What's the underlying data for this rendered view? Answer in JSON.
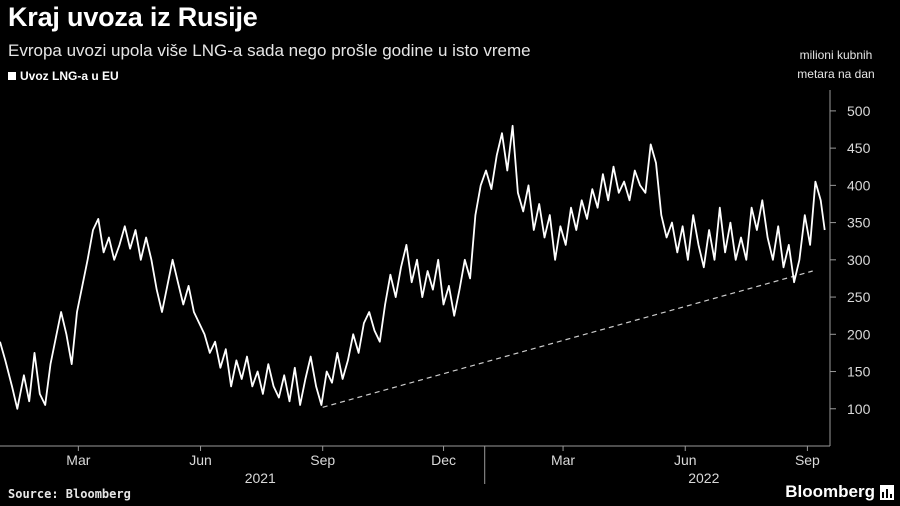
{
  "header": {
    "title": "Kraj uvoza iz Rusije",
    "subtitle": "Evropa uvozi upola više LNG-a sada nego prošle godine u isto vreme",
    "unit_label_1": "milioni kubnih",
    "unit_label_2": "metara na dan"
  },
  "footer": {
    "source": "Source: Bloomberg",
    "brand": "Bloomberg"
  },
  "colors": {
    "background": "#000000",
    "line": "#ffffff",
    "trend": "#cccccc"
  },
  "chart_data": {
    "type": "line",
    "title": "Kraj uvoza iz Rusije",
    "subtitle": "Evropa uvozi upola više LNG-a sada nego prošle godine u isto vreme",
    "ylabel": "milioni kubnih metara na dan",
    "ylim": [
      50,
      520
    ],
    "yticks": [
      100,
      150,
      200,
      250,
      300,
      350,
      400,
      450,
      500
    ],
    "ytick_labels": [
      "100",
      "150",
      "200",
      "250",
      "300",
      "350",
      "400",
      "450",
      "500"
    ],
    "xlim": [
      "2021-01-01",
      "2022-09-15"
    ],
    "xtick_labels": [
      {
        "label": "Mar",
        "date": "2021-03-01"
      },
      {
        "label": "Jun",
        "date": "2021-06-01"
      },
      {
        "label": "Sep",
        "date": "2021-09-01"
      },
      {
        "label": "Dec",
        "date": "2021-12-01"
      },
      {
        "label": "Mar",
        "date": "2022-03-01"
      },
      {
        "label": "Jun",
        "date": "2022-06-01"
      },
      {
        "label": "Sep",
        "date": "2022-09-01"
      }
    ],
    "year_labels": [
      {
        "label": "2021",
        "date": "2021-07-16"
      },
      {
        "label": "2022",
        "date": "2022-06-15"
      }
    ],
    "legend": {
      "position": "top-left",
      "entries": [
        "Uvoz LNG-a u EU"
      ]
    },
    "series": [
      {
        "name": "Uvoz LNG-a u EU",
        "points": [
          [
            "2021-01-01",
            190
          ],
          [
            "2021-01-05",
            165
          ],
          [
            "2021-01-10",
            130
          ],
          [
            "2021-01-14",
            100
          ],
          [
            "2021-01-19",
            145
          ],
          [
            "2021-01-23",
            110
          ],
          [
            "2021-01-27",
            175
          ],
          [
            "2021-01-31",
            120
          ],
          [
            "2021-02-04",
            105
          ],
          [
            "2021-02-08",
            160
          ],
          [
            "2021-02-12",
            195
          ],
          [
            "2021-02-16",
            230
          ],
          [
            "2021-02-20",
            200
          ],
          [
            "2021-02-24",
            160
          ],
          [
            "2021-02-28",
            230
          ],
          [
            "2021-03-04",
            265
          ],
          [
            "2021-03-08",
            300
          ],
          [
            "2021-03-12",
            340
          ],
          [
            "2021-03-16",
            355
          ],
          [
            "2021-03-20",
            310
          ],
          [
            "2021-03-24",
            330
          ],
          [
            "2021-03-28",
            300
          ],
          [
            "2021-04-01",
            320
          ],
          [
            "2021-04-05",
            345
          ],
          [
            "2021-04-09",
            315
          ],
          [
            "2021-04-13",
            340
          ],
          [
            "2021-04-17",
            300
          ],
          [
            "2021-04-21",
            330
          ],
          [
            "2021-04-25",
            300
          ],
          [
            "2021-04-29",
            260
          ],
          [
            "2021-05-03",
            230
          ],
          [
            "2021-05-07",
            265
          ],
          [
            "2021-05-11",
            300
          ],
          [
            "2021-05-15",
            270
          ],
          [
            "2021-05-19",
            240
          ],
          [
            "2021-05-23",
            265
          ],
          [
            "2021-05-27",
            230
          ],
          [
            "2021-05-31",
            215
          ],
          [
            "2021-06-04",
            200
          ],
          [
            "2021-06-08",
            175
          ],
          [
            "2021-06-12",
            190
          ],
          [
            "2021-06-16",
            155
          ],
          [
            "2021-06-20",
            180
          ],
          [
            "2021-06-24",
            130
          ],
          [
            "2021-06-28",
            165
          ],
          [
            "2021-07-02",
            140
          ],
          [
            "2021-07-06",
            170
          ],
          [
            "2021-07-10",
            130
          ],
          [
            "2021-07-14",
            150
          ],
          [
            "2021-07-18",
            120
          ],
          [
            "2021-07-22",
            160
          ],
          [
            "2021-07-26",
            130
          ],
          [
            "2021-07-30",
            115
          ],
          [
            "2021-08-03",
            145
          ],
          [
            "2021-08-07",
            110
          ],
          [
            "2021-08-11",
            155
          ],
          [
            "2021-08-15",
            105
          ],
          [
            "2021-08-19",
            140
          ],
          [
            "2021-08-23",
            170
          ],
          [
            "2021-08-27",
            130
          ],
          [
            "2021-08-31",
            105
          ],
          [
            "2021-09-04",
            150
          ],
          [
            "2021-09-08",
            135
          ],
          [
            "2021-09-12",
            175
          ],
          [
            "2021-09-16",
            140
          ],
          [
            "2021-09-20",
            165
          ],
          [
            "2021-09-24",
            200
          ],
          [
            "2021-09-28",
            175
          ],
          [
            "2021-10-02",
            215
          ],
          [
            "2021-10-06",
            230
          ],
          [
            "2021-10-10",
            205
          ],
          [
            "2021-10-14",
            190
          ],
          [
            "2021-10-18",
            240
          ],
          [
            "2021-10-22",
            280
          ],
          [
            "2021-10-26",
            250
          ],
          [
            "2021-10-30",
            290
          ],
          [
            "2021-11-03",
            320
          ],
          [
            "2021-11-07",
            270
          ],
          [
            "2021-11-11",
            300
          ],
          [
            "2021-11-15",
            250
          ],
          [
            "2021-11-19",
            285
          ],
          [
            "2021-11-23",
            260
          ],
          [
            "2021-11-27",
            300
          ],
          [
            "2021-12-01",
            240
          ],
          [
            "2021-12-05",
            265
          ],
          [
            "2021-12-09",
            225
          ],
          [
            "2021-12-13",
            260
          ],
          [
            "2021-12-17",
            300
          ],
          [
            "2021-12-21",
            275
          ],
          [
            "2021-12-25",
            360
          ],
          [
            "2021-12-29",
            400
          ],
          [
            "2022-01-02",
            420
          ],
          [
            "2022-01-06",
            395
          ],
          [
            "2022-01-10",
            440
          ],
          [
            "2022-01-14",
            470
          ],
          [
            "2022-01-18",
            420
          ],
          [
            "2022-01-22",
            480
          ],
          [
            "2022-01-26",
            390
          ],
          [
            "2022-01-30",
            365
          ],
          [
            "2022-02-03",
            400
          ],
          [
            "2022-02-07",
            340
          ],
          [
            "2022-02-11",
            375
          ],
          [
            "2022-02-15",
            330
          ],
          [
            "2022-02-19",
            360
          ],
          [
            "2022-02-23",
            300
          ],
          [
            "2022-02-27",
            345
          ],
          [
            "2022-03-03",
            320
          ],
          [
            "2022-03-07",
            370
          ],
          [
            "2022-03-11",
            340
          ],
          [
            "2022-03-15",
            380
          ],
          [
            "2022-03-19",
            355
          ],
          [
            "2022-03-23",
            395
          ],
          [
            "2022-03-27",
            370
          ],
          [
            "2022-03-31",
            415
          ],
          [
            "2022-04-04",
            380
          ],
          [
            "2022-04-08",
            425
          ],
          [
            "2022-04-12",
            390
          ],
          [
            "2022-04-16",
            405
          ],
          [
            "2022-04-20",
            380
          ],
          [
            "2022-04-24",
            420
          ],
          [
            "2022-04-28",
            400
          ],
          [
            "2022-05-02",
            390
          ],
          [
            "2022-05-06",
            455
          ],
          [
            "2022-05-10",
            430
          ],
          [
            "2022-05-14",
            360
          ],
          [
            "2022-05-18",
            330
          ],
          [
            "2022-05-22",
            350
          ],
          [
            "2022-05-26",
            310
          ],
          [
            "2022-05-30",
            345
          ],
          [
            "2022-06-03",
            300
          ],
          [
            "2022-06-07",
            360
          ],
          [
            "2022-06-11",
            320
          ],
          [
            "2022-06-15",
            290
          ],
          [
            "2022-06-19",
            340
          ],
          [
            "2022-06-23",
            300
          ],
          [
            "2022-06-27",
            370
          ],
          [
            "2022-07-01",
            310
          ],
          [
            "2022-07-05",
            350
          ],
          [
            "2022-07-09",
            300
          ],
          [
            "2022-07-13",
            330
          ],
          [
            "2022-07-17",
            300
          ],
          [
            "2022-07-21",
            370
          ],
          [
            "2022-07-25",
            340
          ],
          [
            "2022-07-29",
            380
          ],
          [
            "2022-08-02",
            330
          ],
          [
            "2022-08-06",
            300
          ],
          [
            "2022-08-10",
            345
          ],
          [
            "2022-08-14",
            290
          ],
          [
            "2022-08-18",
            320
          ],
          [
            "2022-08-22",
            270
          ],
          [
            "2022-08-26",
            300
          ],
          [
            "2022-08-30",
            360
          ],
          [
            "2022-09-03",
            320
          ],
          [
            "2022-09-07",
            405
          ],
          [
            "2022-09-11",
            380
          ],
          [
            "2022-09-14",
            340
          ]
        ]
      }
    ],
    "annotations": [
      {
        "type": "dashed-trendline",
        "from": [
          "2021-09-01",
          102
        ],
        "to": [
          "2022-09-05",
          285
        ]
      }
    ]
  }
}
